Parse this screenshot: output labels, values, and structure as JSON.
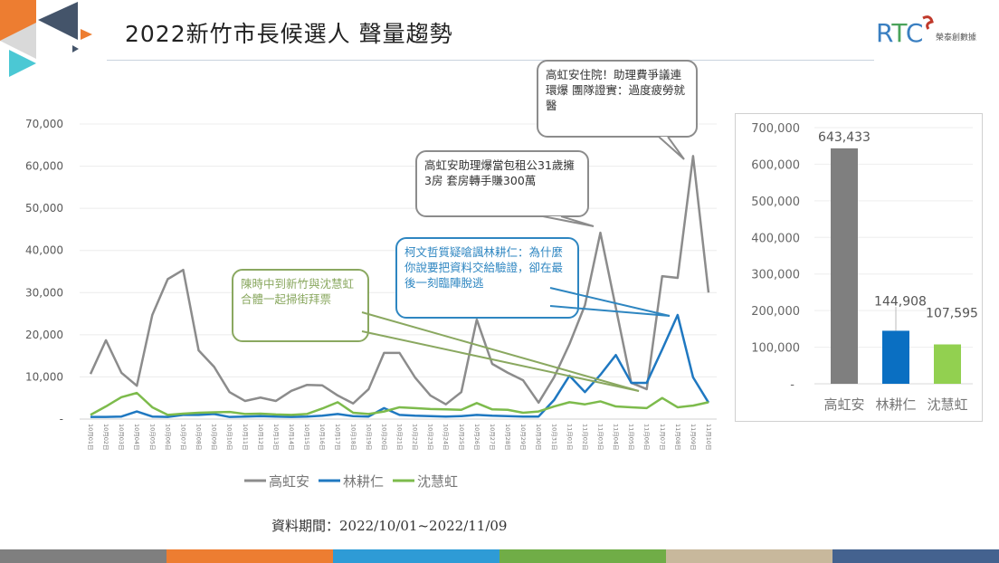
{
  "header": {
    "title": "2022新竹市長候選人 聲量趨勢",
    "logo_text": "RTC",
    "logo_subtext": "榮泰創數據"
  },
  "colors": {
    "gray": "#8c8c8c",
    "blue": "#1f78c1",
    "green": "#7dbb4c",
    "bottom_bar": [
      "#7f7f7f",
      "#ed7d31",
      "#2e9bd6",
      "#70ad47",
      "#c8b89c",
      "#44628f"
    ]
  },
  "callouts": {
    "hospital": "高虹安住院！助理費爭議連環爆 團隊證實：過度疲勞就醫",
    "landlord": "高虹安助理爆當包租公31歲擁3房 套房轉手賺300萬",
    "ko": "柯文哲質疑嗆諷林耕仁：為什麼你說要把資料交給驗證，卻在最後一刻臨陣脫逃",
    "chen": "陳時中到新竹與沈慧虹合體一起掃街拜票"
  },
  "footer": {
    "period": "資料期間：2022/10/01~2022/11/09"
  },
  "chart_data": [
    {
      "type": "line",
      "title": "",
      "xlabel": "",
      "ylabel": "",
      "ylim": [
        0,
        70000
      ],
      "yticks": [
        0,
        10000,
        20000,
        30000,
        40000,
        50000,
        60000,
        70000
      ],
      "ytick_labels": [
        "-",
        "10,000",
        "20,000",
        "30,000",
        "40,000",
        "50,000",
        "60,000",
        "70,000"
      ],
      "grid": true,
      "legend": "bottom",
      "x": [
        "10月01日",
        "10月02日",
        "10月03日",
        "10月04日",
        "10月05日",
        "10月06日",
        "10月07日",
        "10月08日",
        "10月09日",
        "10月10日",
        "10月11日",
        "10月12日",
        "10月13日",
        "10月14日",
        "10月15日",
        "10月16日",
        "10月17日",
        "10月18日",
        "10月19日",
        "10月20日",
        "10月21日",
        "10月22日",
        "10月23日",
        "10月24日",
        "10月25日",
        "10月26日",
        "10月27日",
        "10月28日",
        "10月29日",
        "10月30日",
        "10月31日",
        "11月01日",
        "11月02日",
        "11月03日",
        "11月04日",
        "11月05日",
        "11月06日",
        "11月07日",
        "11月08日",
        "11月09日",
        "11月10日"
      ],
      "series": [
        {
          "name": "高虹安",
          "color": "#8c8c8c",
          "values": [
            10700,
            18700,
            11000,
            7900,
            24700,
            33200,
            35400,
            16300,
            12400,
            6400,
            4300,
            5100,
            4300,
            6700,
            8100,
            8000,
            5600,
            3700,
            7100,
            15700,
            15700,
            9900,
            5600,
            3500,
            6400,
            23600,
            13100,
            11000,
            9200,
            3900,
            9900,
            17800,
            27000,
            44200,
            26400,
            8600,
            7100,
            33900,
            33500,
            62400,
            30000
          ]
        },
        {
          "name": "林耕仁",
          "color": "#1f78c1",
          "values": [
            500,
            500,
            600,
            1800,
            600,
            500,
            1000,
            1000,
            1200,
            500,
            600,
            700,
            600,
            500,
            600,
            800,
            1200,
            700,
            600,
            2600,
            1000,
            800,
            700,
            600,
            700,
            1000,
            800,
            700,
            600,
            600,
            4500,
            10300,
            6400,
            10500,
            15200,
            8600,
            8600,
            16500,
            24700,
            9900,
            3900
          ]
        },
        {
          "name": "沈慧虹",
          "color": "#7dbb4c",
          "values": [
            1000,
            3000,
            5200,
            6200,
            2800,
            1000,
            1300,
            1500,
            1600,
            1700,
            1200,
            1300,
            1100,
            1000,
            1200,
            2500,
            4000,
            1500,
            1200,
            1800,
            2800,
            2600,
            2400,
            2300,
            2200,
            3800,
            2300,
            2200,
            1500,
            1800,
            3000,
            4000,
            3500,
            4200,
            3000,
            2800,
            2600,
            5000,
            2800,
            3200,
            4000
          ]
        }
      ]
    },
    {
      "type": "bar",
      "title": "",
      "categories": [
        "高虹安",
        "林耕仁",
        "沈慧虹"
      ],
      "values": [
        643433,
        144908,
        107595
      ],
      "value_labels": [
        "643,433",
        "144,908",
        "107,595"
      ],
      "colors": [
        "#7f7f7f",
        "#0a6fc2",
        "#92d050"
      ],
      "ylim": [
        0,
        700000
      ],
      "yticks": [
        0,
        100000,
        200000,
        300000,
        400000,
        500000,
        600000,
        700000
      ],
      "ytick_labels": [
        "-",
        "100,000",
        "200,000",
        "300,000",
        "400,000",
        "500,000",
        "600,000",
        "700,000"
      ],
      "grid": true
    }
  ]
}
